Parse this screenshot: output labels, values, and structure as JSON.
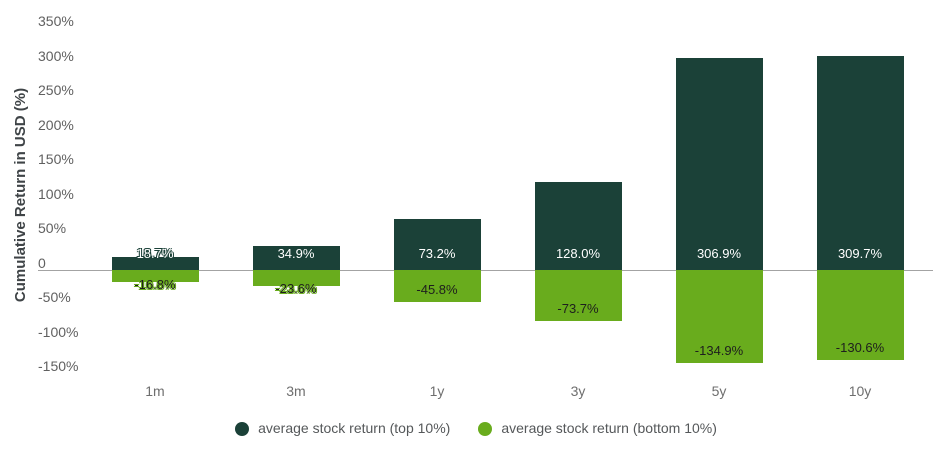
{
  "chart_data": {
    "type": "bar",
    "title": "",
    "xlabel": "",
    "ylabel": "Cumulative Return in USD (%)",
    "categories": [
      "1m",
      "3m",
      "1y",
      "3y",
      "5y",
      "10y"
    ],
    "series": [
      {
        "name": "average stock return (top 10%)",
        "color": "#1b4138",
        "values": [
          18.7,
          34.9,
          73.2,
          128.0,
          306.9,
          309.7
        ],
        "labels": [
          "18.7%",
          "34.9%",
          "73.2%",
          "128.0%",
          "306.9%",
          "309.7%"
        ],
        "label_text_color": "#ffffff"
      },
      {
        "name": "average stock return (bottom 10%)",
        "color": "#69ac1d",
        "values": [
          -16.8,
          -23.6,
          -45.8,
          -73.7,
          -134.9,
          -130.6
        ],
        "labels": [
          "-16.8%",
          "-23.6%",
          "-45.8%",
          "-73.7%",
          "-134.9%",
          "-130.6%"
        ],
        "label_text_color": "#1e1e1e"
      }
    ],
    "y_axis": {
      "range": [
        -150,
        350
      ],
      "tick_step": 50,
      "ticks": [
        {
          "value": 350,
          "label": "350%"
        },
        {
          "value": 300,
          "label": "300%"
        },
        {
          "value": 250,
          "label": "250%"
        },
        {
          "value": 200,
          "label": "200%"
        },
        {
          "value": 150,
          "label": "150%"
        },
        {
          "value": 100,
          "label": "100%"
        },
        {
          "value": 50,
          "label": "50%"
        },
        {
          "value": 0,
          "label": "0"
        },
        {
          "value": -50,
          "label": "-50%"
        },
        {
          "value": -100,
          "label": "-100%"
        },
        {
          "value": -150,
          "label": "-150%"
        }
      ]
    },
    "grid": false,
    "legend_position": "bottom",
    "axis_line_color": "#a3a3a3"
  }
}
